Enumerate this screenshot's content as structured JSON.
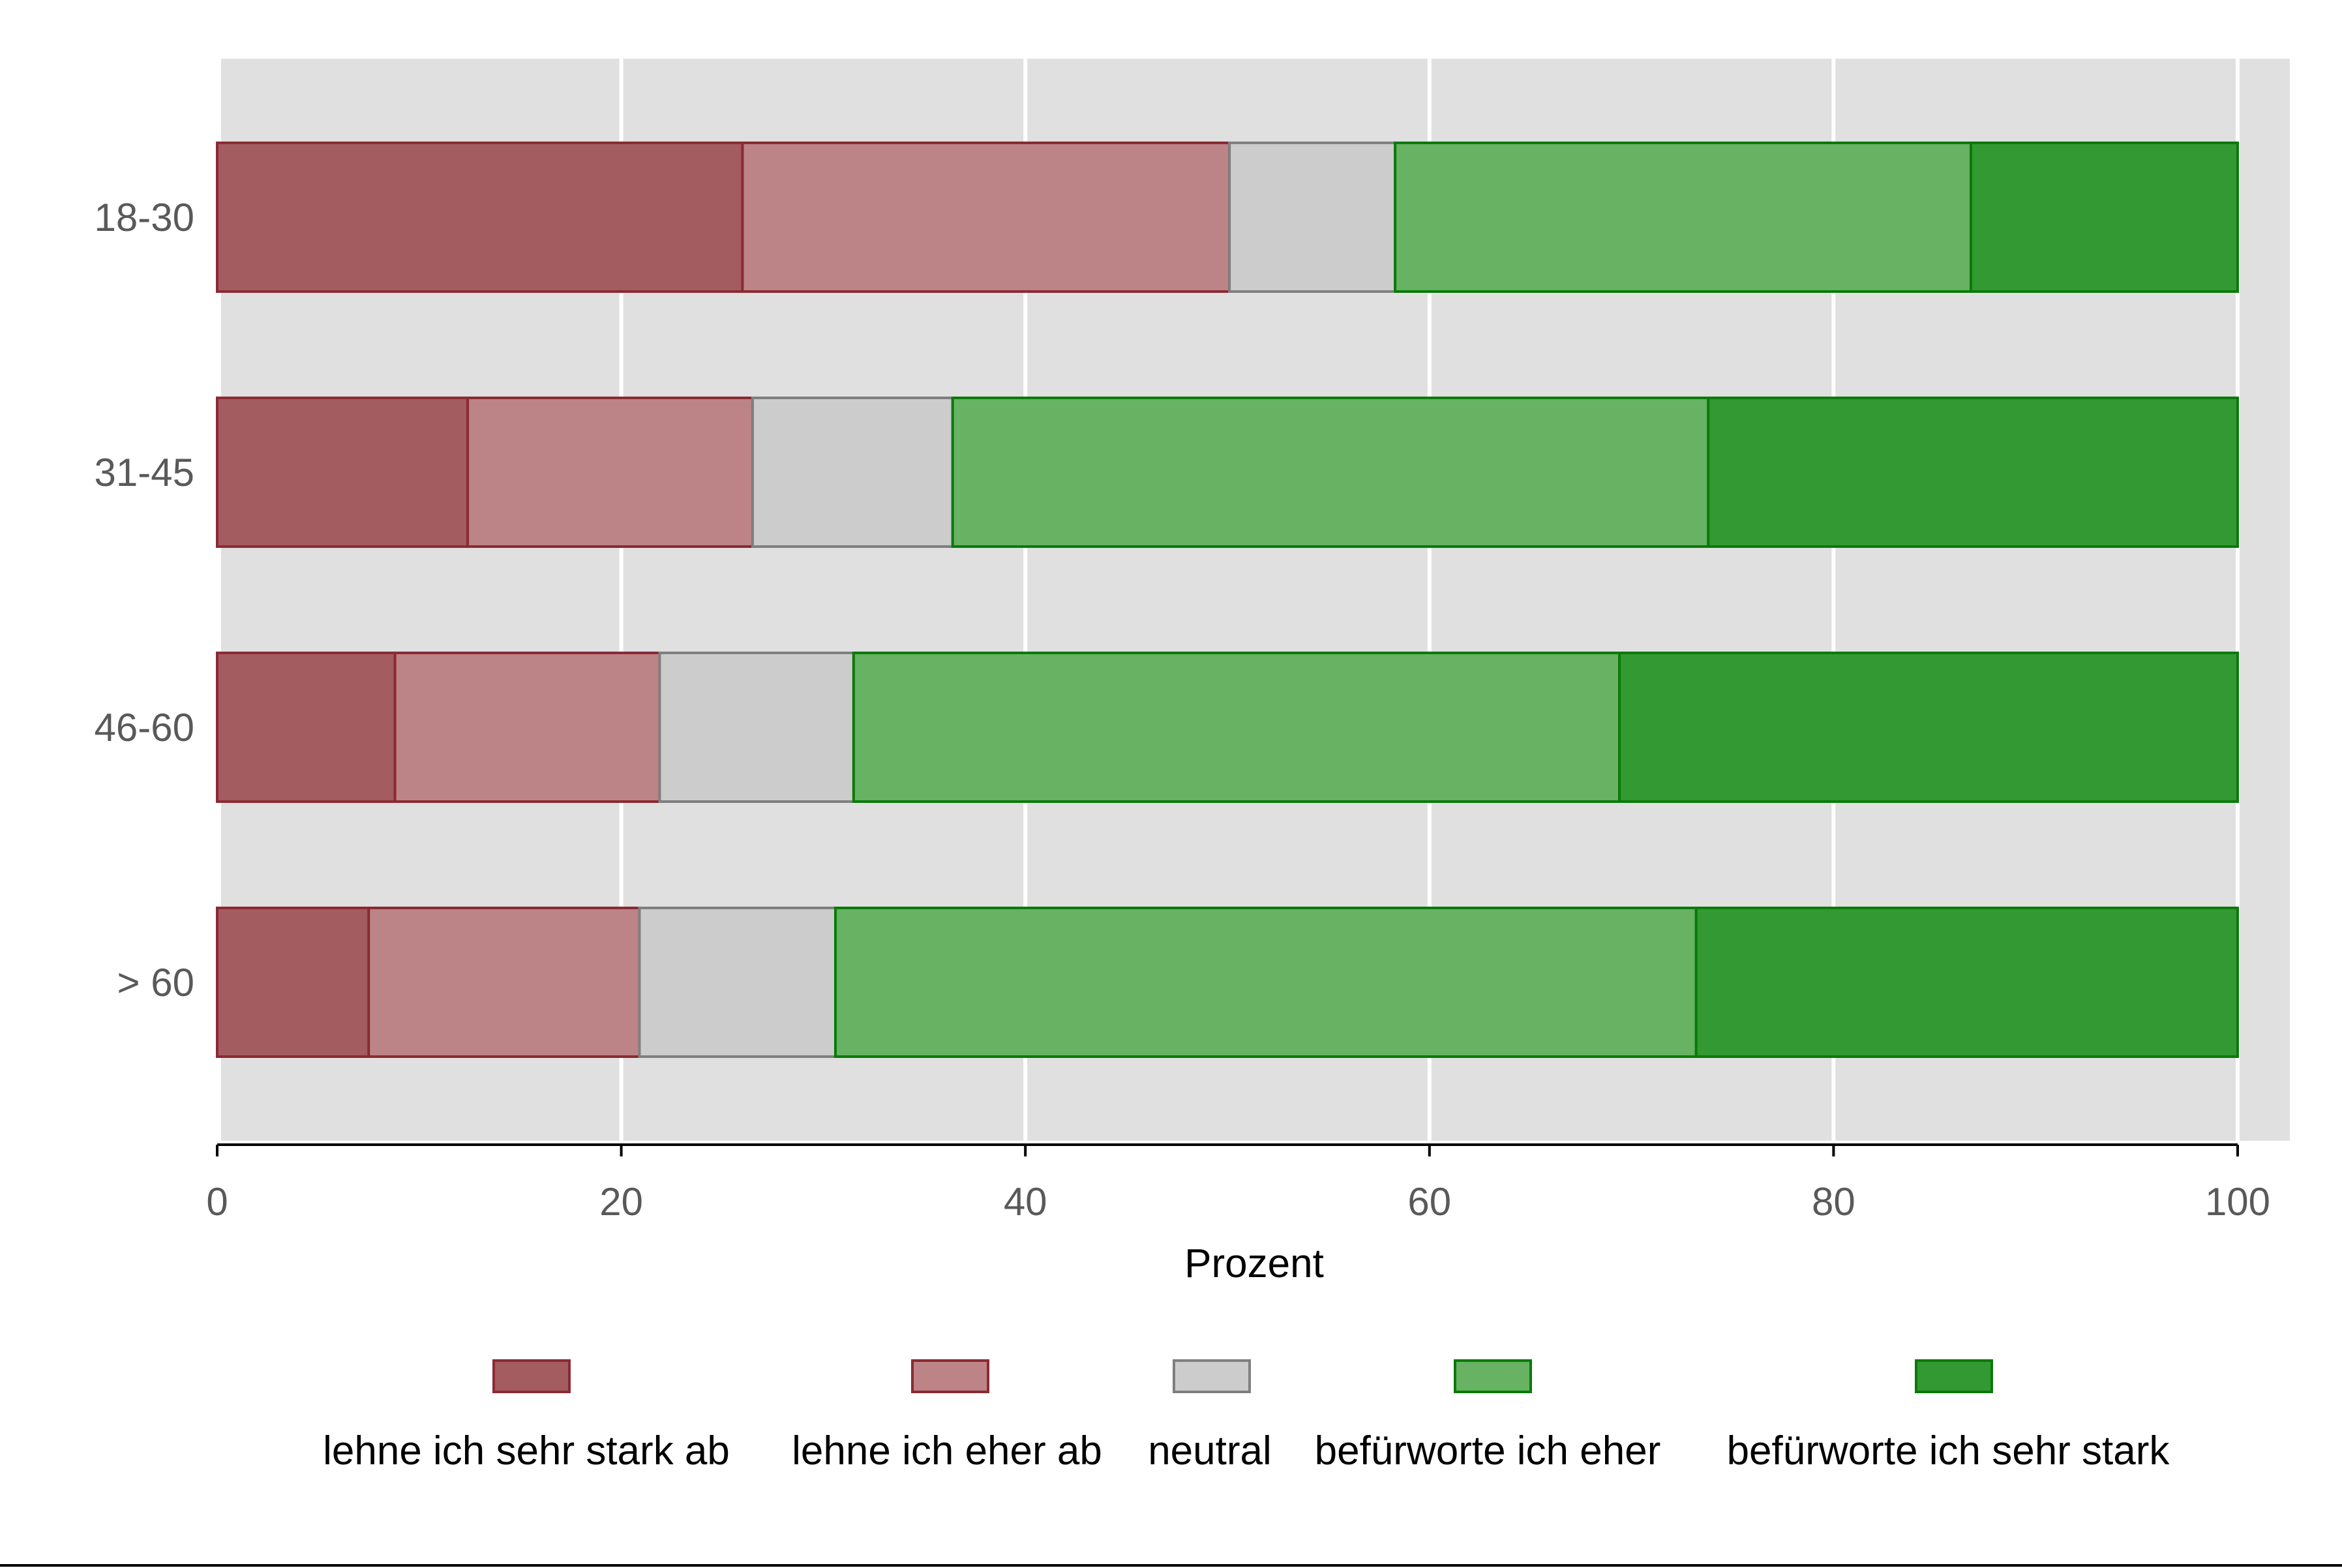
{
  "chart_data": {
    "type": "bar",
    "orientation": "horizontal",
    "stacked": true,
    "categories": [
      "18-30",
      "31-45",
      "46-60",
      "> 60"
    ],
    "series": [
      {
        "name": "lehne ich sehr stark ab",
        "color": "#a35c60",
        "stroke": "#8b2a33",
        "values": [
          26.0,
          12.4,
          8.8,
          7.5
        ]
      },
      {
        "name": "lehne ich eher ab",
        "color": "#bc8486",
        "stroke": "#8b2a33",
        "values": [
          24.1,
          14.1,
          13.1,
          13.4
        ]
      },
      {
        "name": "neutral",
        "color": "#cccccc",
        "stroke": "#7f7f7f",
        "values": [
          8.2,
          9.9,
          9.6,
          9.7
        ]
      },
      {
        "name": "befürworte ich eher",
        "color": "#67b263",
        "stroke": "#0a7a0a",
        "values": [
          28.5,
          37.4,
          37.9,
          42.6
        ]
      },
      {
        "name": "befürworte ich sehr stark",
        "color": "#339933",
        "stroke": "#0a7a0a",
        "values": [
          13.2,
          26.2,
          30.6,
          26.8
        ]
      }
    ],
    "xlabel": "Prozent",
    "ylabel": "",
    "xlim": [
      0,
      100
    ],
    "xticks": [
      0,
      20,
      40,
      60,
      80,
      100
    ],
    "grid": true,
    "background": "#e0e0e0",
    "legend_position": "bottom"
  }
}
